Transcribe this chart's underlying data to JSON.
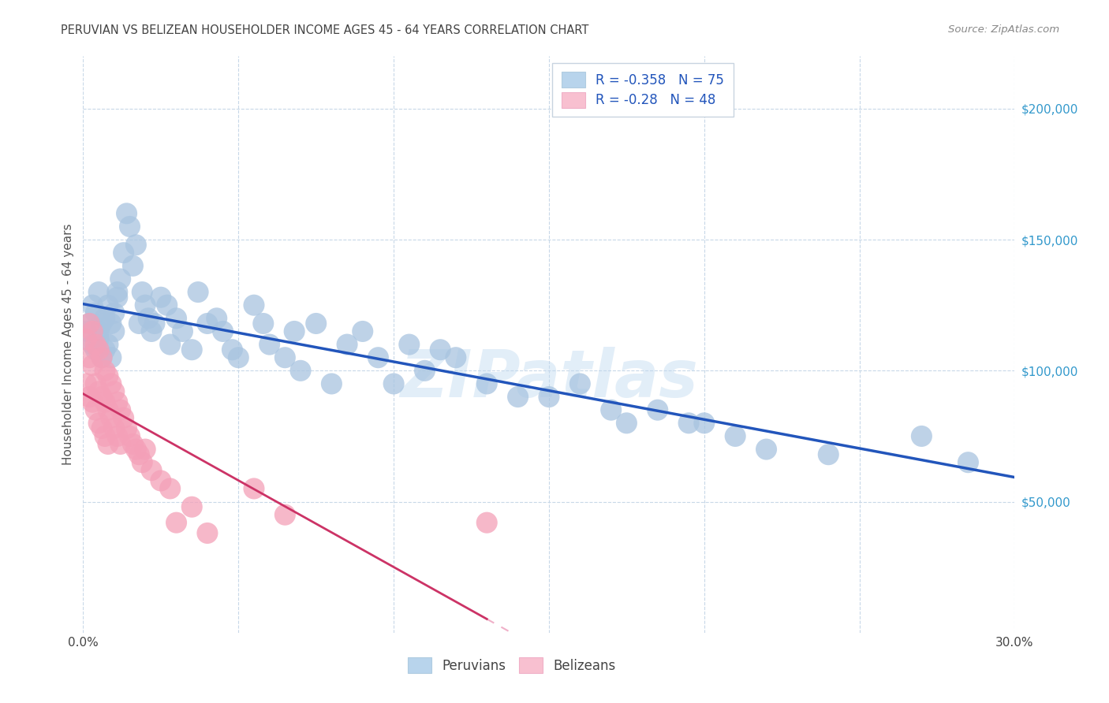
{
  "title": "PERUVIAN VS BELIZEAN HOUSEHOLDER INCOME AGES 45 - 64 YEARS CORRELATION CHART",
  "source": "Source: ZipAtlas.com",
  "ylabel": "Householder Income Ages 45 - 64 years",
  "watermark": "ZIPatlas",
  "xlim": [
    0.0,
    0.3
  ],
  "ylim": [
    0,
    220000
  ],
  "xticks": [
    0.0,
    0.05,
    0.1,
    0.15,
    0.2,
    0.25,
    0.3
  ],
  "xticklabels": [
    "0.0%",
    "",
    "",
    "",
    "",
    "",
    "30.0%"
  ],
  "ytick_positions": [
    50000,
    100000,
    150000,
    200000
  ],
  "ytick_labels": [
    "$50,000",
    "$100,000",
    "$150,000",
    "$200,000"
  ],
  "blue_R": -0.358,
  "blue_N": 75,
  "pink_R": -0.28,
  "pink_N": 48,
  "blue_dot_color": "#a8c4e0",
  "pink_dot_color": "#f4a0b8",
  "blue_line_color": "#2255bb",
  "pink_line_color": "#cc3366",
  "pink_dash_color": "#f0b0c8",
  "legend_blue_fill": "#b8d4ec",
  "legend_pink_fill": "#f8c0d0",
  "legend_text_color": "#2255bb",
  "title_color": "#444444",
  "source_color": "#888888",
  "axis_label_color": "#555555",
  "ytick_color": "#3399cc",
  "grid_color": "#c8d8e8",
  "blue_scatter_x": [
    0.001,
    0.002,
    0.003,
    0.003,
    0.004,
    0.004,
    0.005,
    0.005,
    0.005,
    0.006,
    0.006,
    0.007,
    0.007,
    0.008,
    0.008,
    0.009,
    0.009,
    0.01,
    0.01,
    0.011,
    0.011,
    0.012,
    0.013,
    0.014,
    0.015,
    0.016,
    0.017,
    0.018,
    0.019,
    0.02,
    0.021,
    0.022,
    0.023,
    0.025,
    0.027,
    0.028,
    0.03,
    0.032,
    0.035,
    0.037,
    0.04,
    0.043,
    0.045,
    0.048,
    0.05,
    0.055,
    0.058,
    0.06,
    0.065,
    0.068,
    0.07,
    0.075,
    0.08,
    0.085,
    0.09,
    0.095,
    0.1,
    0.105,
    0.11,
    0.115,
    0.12,
    0.13,
    0.14,
    0.15,
    0.16,
    0.17,
    0.175,
    0.185,
    0.195,
    0.2,
    0.21,
    0.22,
    0.24,
    0.27,
    0.285
  ],
  "blue_scatter_y": [
    115000,
    118000,
    110000,
    125000,
    108000,
    122000,
    115000,
    112000,
    130000,
    118000,
    105000,
    120000,
    108000,
    125000,
    110000,
    118000,
    105000,
    115000,
    122000,
    130000,
    128000,
    135000,
    145000,
    160000,
    155000,
    140000,
    148000,
    118000,
    130000,
    125000,
    120000,
    115000,
    118000,
    128000,
    125000,
    110000,
    120000,
    115000,
    108000,
    130000,
    118000,
    120000,
    115000,
    108000,
    105000,
    125000,
    118000,
    110000,
    105000,
    115000,
    100000,
    118000,
    95000,
    110000,
    115000,
    105000,
    95000,
    110000,
    100000,
    108000,
    105000,
    95000,
    90000,
    90000,
    95000,
    85000,
    80000,
    85000,
    80000,
    80000,
    75000,
    70000,
    68000,
    75000,
    65000
  ],
  "pink_scatter_x": [
    0.001,
    0.001,
    0.002,
    0.002,
    0.002,
    0.003,
    0.003,
    0.003,
    0.004,
    0.004,
    0.004,
    0.005,
    0.005,
    0.005,
    0.006,
    0.006,
    0.006,
    0.007,
    0.007,
    0.007,
    0.008,
    0.008,
    0.008,
    0.009,
    0.009,
    0.01,
    0.01,
    0.011,
    0.011,
    0.012,
    0.012,
    0.013,
    0.014,
    0.015,
    0.016,
    0.017,
    0.018,
    0.019,
    0.02,
    0.022,
    0.025,
    0.028,
    0.03,
    0.035,
    0.04,
    0.055,
    0.065,
    0.13
  ],
  "pink_scatter_y": [
    112000,
    95000,
    118000,
    105000,
    90000,
    115000,
    102000,
    88000,
    110000,
    95000,
    85000,
    108000,
    92000,
    80000,
    105000,
    90000,
    78000,
    100000,
    88000,
    75000,
    98000,
    85000,
    72000,
    95000,
    82000,
    92000,
    78000,
    88000,
    75000,
    85000,
    72000,
    82000,
    78000,
    75000,
    72000,
    70000,
    68000,
    65000,
    70000,
    62000,
    58000,
    55000,
    42000,
    48000,
    38000,
    55000,
    45000,
    42000
  ]
}
